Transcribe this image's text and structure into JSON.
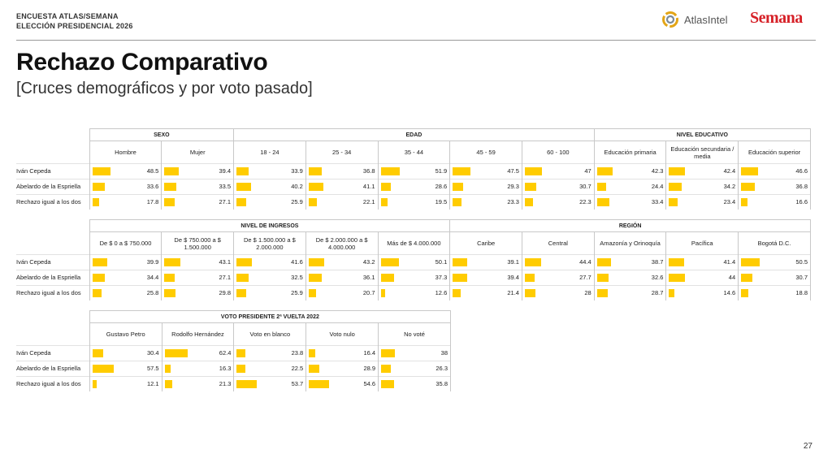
{
  "header": {
    "survey_line1": "ENCUESTA ATLAS/SEMANA",
    "survey_line2": "ELECCIÓN PRESIDENCIAL 2026",
    "atlas_logo_text": "AtlasIntel",
    "semana_logo_text": "Semana"
  },
  "title": "Rechazo Comparativo",
  "subtitle": "[Cruces demográficos y por voto pasado]",
  "page_number": "27",
  "colors": {
    "bar": "#ffcc00",
    "rule": "#999999",
    "semana_red": "#d62027"
  },
  "chart_data": {
    "type": "table",
    "measure": "Rechazo (%)",
    "scale_max": 100,
    "row_labels": [
      "Iván Cepeda",
      "Abelardo de la Espriella",
      "Rechazo igual a los dos"
    ],
    "blocks": [
      {
        "groups": [
          {
            "name": "SEXO",
            "columns": [
              {
                "label": "Hombre",
                "values": [
                  48.5,
                  33.6,
                  17.8
                ]
              },
              {
                "label": "Mujer",
                "values": [
                  39.4,
                  33.5,
                  27.1
                ]
              }
            ]
          },
          {
            "name": "EDAD",
            "columns": [
              {
                "label": "18 - 24",
                "values": [
                  33.9,
                  40.2,
                  25.9
                ]
              },
              {
                "label": "25 - 34",
                "values": [
                  36.8,
                  41.1,
                  22.1
                ]
              },
              {
                "label": "35 - 44",
                "values": [
                  51.9,
                  28.6,
                  19.5
                ]
              },
              {
                "label": "45 - 59",
                "values": [
                  47.5,
                  29.3,
                  23.3
                ]
              },
              {
                "label": "60 - 100",
                "values": [
                  47,
                  30.7,
                  22.3
                ]
              }
            ]
          },
          {
            "name": "NIVEL EDUCATIVO",
            "columns": [
              {
                "label": "Educación primaria",
                "values": [
                  42.3,
                  24.4,
                  33.4
                ]
              },
              {
                "label": "Educación secundaria / media",
                "values": [
                  42.4,
                  34.2,
                  23.4
                ]
              },
              {
                "label": "Educación superior",
                "values": [
                  46.6,
                  36.8,
                  16.6
                ]
              }
            ]
          }
        ]
      },
      {
        "groups": [
          {
            "name": "NIVEL DE INGRESOS",
            "columns": [
              {
                "label": "De $ 0 a $ 750.000",
                "values": [
                  39.9,
                  34.4,
                  25.8
                ]
              },
              {
                "label": "De $ 750.000 a $ 1.500.000",
                "values": [
                  43.1,
                  27.1,
                  29.8
                ]
              },
              {
                "label": "De $ 1.500.000 a $ 2.000.000",
                "values": [
                  41.6,
                  32.5,
                  25.9
                ]
              },
              {
                "label": "De $ 2.000.000 a $ 4.000.000",
                "values": [
                  43.2,
                  36.1,
                  20.7
                ]
              },
              {
                "label": "Más de $ 4.000.000",
                "values": [
                  50.1,
                  37.3,
                  12.6
                ]
              }
            ]
          },
          {
            "name": "REGIÓN",
            "columns": [
              {
                "label": "Caribe",
                "values": [
                  39.1,
                  39.4,
                  21.4
                ]
              },
              {
                "label": "Central",
                "values": [
                  44.4,
                  27.7,
                  28
                ]
              },
              {
                "label": "Amazonía y Orinoquía",
                "values": [
                  38.7,
                  32.6,
                  28.7
                ]
              },
              {
                "label": "Pacífica",
                "values": [
                  41.4,
                  44,
                  14.6
                ]
              },
              {
                "label": "Bogotá D.C.",
                "values": [
                  50.5,
                  30.7,
                  18.8
                ]
              }
            ]
          }
        ]
      },
      {
        "groups": [
          {
            "name": "VOTO PRESIDENTE 2ª VUELTA 2022",
            "columns": [
              {
                "label": "Gustavo Petro",
                "values": [
                  30.4,
                  57.5,
                  12.1
                ]
              },
              {
                "label": "Rodolfo Hernández",
                "values": [
                  62.4,
                  16.3,
                  21.3
                ]
              },
              {
                "label": "Voto en blanco",
                "values": [
                  23.8,
                  22.5,
                  53.7
                ]
              },
              {
                "label": "Voto nulo",
                "values": [
                  16.4,
                  28.9,
                  54.6
                ]
              },
              {
                "label": "No voté",
                "values": [
                  38,
                  26.3,
                  35.8
                ]
              }
            ]
          }
        ]
      }
    ]
  }
}
